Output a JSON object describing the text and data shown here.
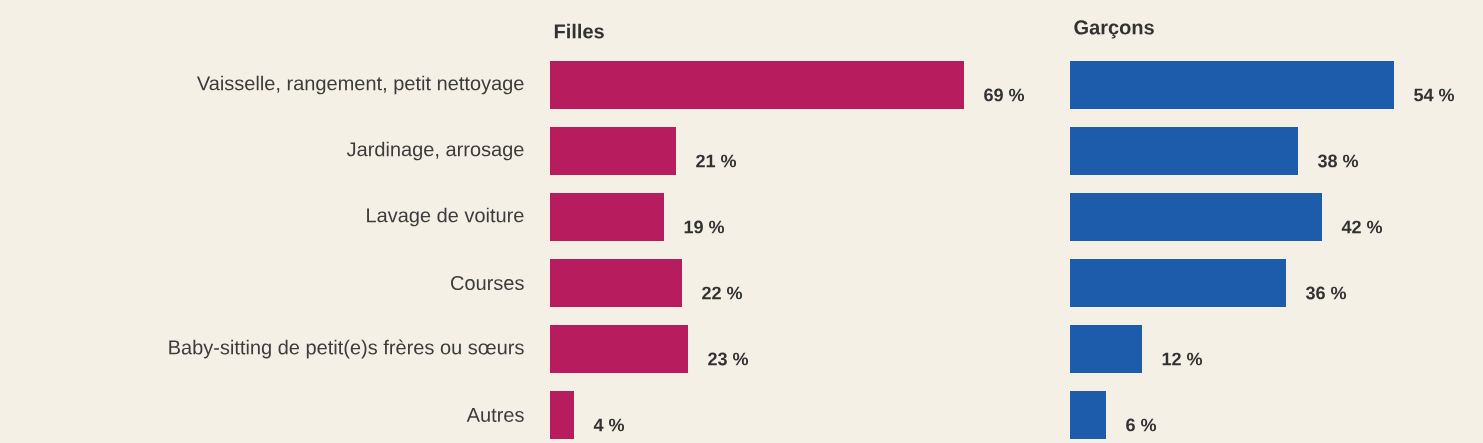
{
  "chart_data": [
    {
      "type": "bar",
      "orientation": "horizontal",
      "title": "Filles",
      "categories": [
        "Vaisselle, rangement, petit nettoyage",
        "Jardinage, arrosage",
        "Lavage de voiture",
        "Courses",
        "Baby-sitting de petit(e)s frères ou sœurs",
        "Autres"
      ],
      "values": [
        69,
        21,
        19,
        22,
        23,
        4
      ],
      "value_labels": [
        "69 %",
        "21 %",
        "19 %",
        "22 %",
        "23 %",
        "4 %"
      ],
      "color": "#b71c5f"
    },
    {
      "type": "bar",
      "orientation": "horizontal",
      "title": "Garçons",
      "categories": [
        null,
        null,
        null,
        null,
        null,
        null
      ],
      "values": [
        54,
        38,
        42,
        36,
        12,
        6
      ],
      "value_labels": [
        "54 %",
        "38 %",
        "42 %",
        "36 %",
        "12 %",
        "6 %"
      ],
      "color": "#1c5cab"
    }
  ]
}
